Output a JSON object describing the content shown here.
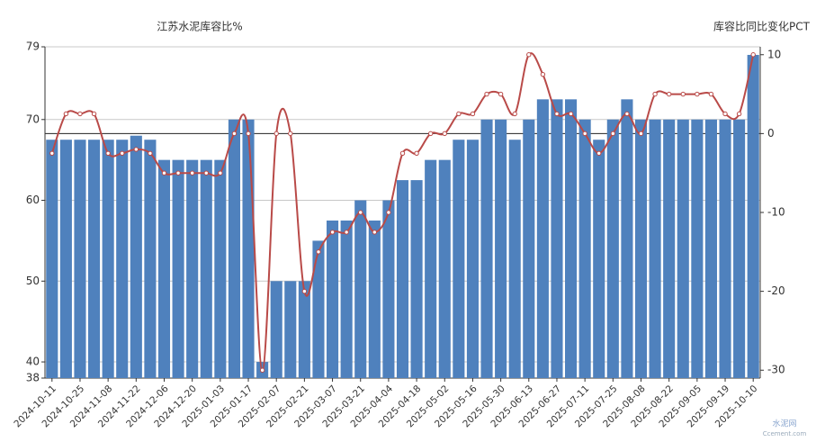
{
  "chart_data": {
    "type": "bar",
    "categories": [
      "2024-10-11",
      null,
      "2024-10-25",
      null,
      "2024-11-08",
      null,
      "2024-11-22",
      null,
      "2024-12-06",
      null,
      "2024-12-20",
      null,
      "2025-01-03",
      null,
      "2025-01-17",
      null,
      "2025-02-07",
      null,
      "2025-02-21",
      null,
      "2025-03-07",
      null,
      "2025-03-21",
      null,
      "2025-04-04",
      null,
      "2025-04-18",
      null,
      "2025-05-02",
      null,
      "2025-05-16",
      null,
      "2025-05-30",
      null,
      "2025-06-13",
      null,
      "2025-06-27",
      null,
      "2025-07-11",
      null,
      "2025-07-25",
      null,
      "2025-08-08",
      null,
      "2025-08-22",
      null,
      "2025-09-05",
      null,
      "2025-09-19",
      null,
      "2025-10-10"
    ],
    "series": [
      {
        "name": "江苏水泥库容比%",
        "type": "bar",
        "axis": "y",
        "color": "#4f81bd",
        "values": [
          67.5,
          67.5,
          67.5,
          67.5,
          67.5,
          67.5,
          68,
          67.5,
          65,
          65,
          65,
          65,
          65,
          70,
          70,
          40,
          50,
          50,
          50,
          55,
          57.5,
          57.5,
          60,
          57.5,
          60,
          62.5,
          62.5,
          65,
          65,
          67.5,
          67.5,
          70,
          70,
          67.5,
          70,
          72.5,
          72.5,
          72.5,
          70,
          67.5,
          70,
          72.5,
          70,
          70,
          70,
          70,
          70,
          70,
          70,
          70,
          78
        ]
      },
      {
        "name": "库容比同比变化PCT",
        "type": "line",
        "axis": "y2",
        "color": "#b94a48",
        "values": [
          -2.5,
          2.5,
          2.5,
          2.5,
          -2.5,
          -2.5,
          -2,
          -2.5,
          -5,
          -5,
          -5,
          -5,
          -5,
          0,
          0,
          -30,
          0,
          0,
          -20,
          -15,
          -12.5,
          -12.5,
          -10,
          -12.5,
          -10,
          -2.5,
          -2.5,
          0,
          0,
          2.5,
          2.5,
          5,
          5,
          2.5,
          10,
          7.5,
          2.5,
          2.5,
          0,
          -2.5,
          0,
          2.5,
          0,
          5,
          5,
          5,
          5,
          5,
          2.5,
          2.5,
          10
        ]
      }
    ],
    "ylim": [
      38,
      79
    ],
    "yticks": [
      38,
      40,
      50,
      60,
      70,
      79
    ],
    "y2lim": [
      -31,
      11
    ],
    "y2ticks": [
      -30,
      -20,
      -10,
      0,
      10
    ],
    "grid": true,
    "watermark": [
      "水泥网",
      "Ccement.com"
    ]
  }
}
